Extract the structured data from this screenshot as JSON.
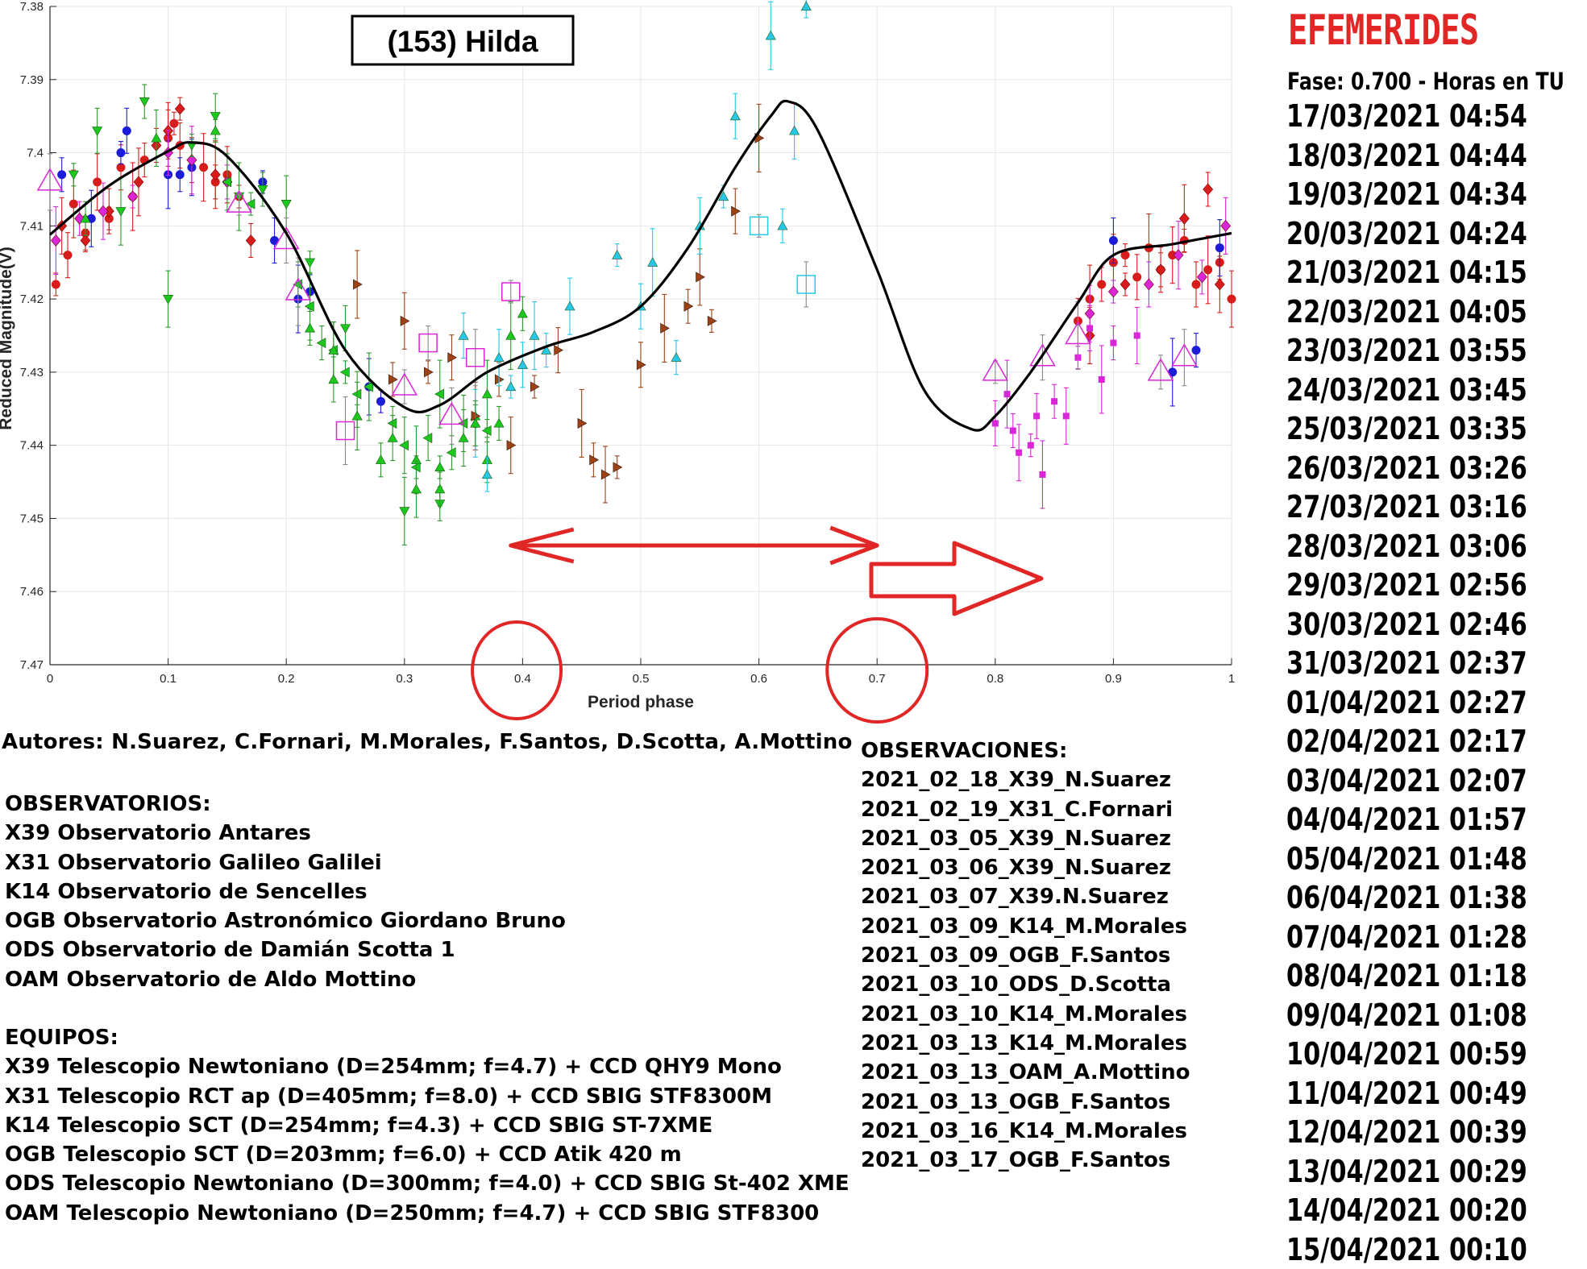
{
  "chart_data": {
    "type": "scatter",
    "title": "(153) Hilda",
    "xlabel": "Period phase",
    "ylabel": "Reduced Magnitude(V)",
    "xlim": [
      0,
      1
    ],
    "ylim": [
      7.47,
      7.38
    ],
    "y_reversed": true,
    "grid": true,
    "x_ticks": [
      "0",
      "0.1",
      "0.2",
      "0.3",
      "0.4",
      "0.5",
      "0.6",
      "0.7",
      "0.8",
      "0.9",
      "1"
    ],
    "y_ticks": [
      "7.38",
      "7.39",
      "7.4",
      "7.41",
      "7.42",
      "7.43",
      "7.44",
      "7.45",
      "7.46",
      "7.47"
    ],
    "fit_curve": {
      "color": "#000000",
      "x": [
        0.0,
        0.05,
        0.1,
        0.12,
        0.15,
        0.2,
        0.25,
        0.3,
        0.33,
        0.37,
        0.42,
        0.46,
        0.5,
        0.54,
        0.58,
        0.61,
        0.625,
        0.65,
        0.7,
        0.74,
        0.78,
        0.8,
        0.83,
        0.87,
        0.9,
        0.95,
        1.0
      ],
      "y": [
        7.4112,
        7.4045,
        7.3998,
        7.3986,
        7.4005,
        7.411,
        7.427,
        7.4348,
        7.4345,
        7.43,
        7.4265,
        7.4245,
        7.421,
        7.413,
        7.402,
        7.395,
        7.393,
        7.397,
        7.416,
        7.4325,
        7.4378,
        7.436,
        7.43,
        7.4205,
        7.414,
        7.4125,
        7.411
      ]
    },
    "series": [
      {
        "name": "2021_02_18_X39_N.Suarez",
        "marker": "circle",
        "color": "#d81c1c",
        "x": [
          0.005,
          0.015,
          0.02,
          0.03,
          0.04,
          0.05,
          0.06,
          0.07,
          0.08,
          0.1,
          0.105,
          0.11,
          0.13,
          0.14,
          0.15,
          0.16,
          0.87,
          0.88,
          0.89,
          0.9,
          0.91,
          0.92,
          0.93,
          0.94,
          0.95,
          0.96,
          0.97,
          0.98,
          0.99,
          1.0
        ],
        "y": [
          7.418,
          7.414,
          7.407,
          7.411,
          7.404,
          7.409,
          7.402,
          7.406,
          7.401,
          7.398,
          7.396,
          7.399,
          7.402,
          7.404,
          7.403,
          7.406,
          7.423,
          7.42,
          7.418,
          7.415,
          7.414,
          7.417,
          7.413,
          7.416,
          7.414,
          7.412,
          7.418,
          7.416,
          7.415,
          7.42
        ]
      },
      {
        "name": "2021_02_19_X31_C.Fornari",
        "marker": "diamond",
        "color": "#d81c1c",
        "x": [
          0.01,
          0.03,
          0.05,
          0.075,
          0.09,
          0.1,
          0.11,
          0.12,
          0.14,
          0.17,
          0.88,
          0.91,
          0.94,
          0.96,
          0.98,
          0.99
        ],
        "y": [
          7.41,
          7.412,
          7.408,
          7.404,
          7.399,
          7.397,
          7.394,
          7.401,
          7.403,
          7.412,
          7.425,
          7.418,
          7.416,
          7.409,
          7.405,
          7.418
        ]
      },
      {
        "name": "2021_03_05_X39_N.Suarez",
        "marker": "circle",
        "color": "#1c1cd8",
        "x": [
          0.01,
          0.035,
          0.06,
          0.065,
          0.1,
          0.11,
          0.12,
          0.18,
          0.19,
          0.21,
          0.22,
          0.27,
          0.28,
          0.9,
          0.95,
          0.97,
          0.99
        ],
        "y": [
          7.403,
          7.409,
          7.4,
          7.397,
          7.403,
          7.403,
          7.402,
          7.404,
          7.412,
          7.42,
          7.419,
          7.432,
          7.434,
          7.412,
          7.43,
          7.427,
          7.413
        ]
      },
      {
        "name": "2021_03_06_X39_N.Suarez",
        "marker": "diamond",
        "color": "#d826d8",
        "x": [
          0.005,
          0.025,
          0.045,
          0.07,
          0.1,
          0.12,
          0.15,
          0.88,
          0.9,
          0.93,
          0.955,
          0.975,
          0.995
        ],
        "y": [
          7.412,
          7.409,
          7.408,
          7.406,
          7.4,
          7.401,
          7.404,
          7.422,
          7.419,
          7.418,
          7.414,
          7.417,
          7.41
        ]
      },
      {
        "name": "2021_03_07_X39.N.Suarez",
        "marker": "square",
        "color": "#d826d8",
        "x": [
          0.8,
          0.81,
          0.815,
          0.82,
          0.83,
          0.835,
          0.84,
          0.85,
          0.86,
          0.87,
          0.88,
          0.89,
          0.9,
          0.92
        ],
        "y": [
          7.437,
          7.433,
          7.438,
          7.441,
          7.44,
          7.436,
          7.444,
          7.434,
          7.436,
          7.428,
          7.424,
          7.431,
          7.426,
          7.425
        ]
      },
      {
        "name": "2021_03_09_K14_M.Morales",
        "marker": "triangle-down",
        "color": "#1cc81c",
        "x": [
          0.02,
          0.04,
          0.06,
          0.08,
          0.1,
          0.12,
          0.14,
          0.16,
          0.18,
          0.2,
          0.22,
          0.25,
          0.3,
          0.33
        ],
        "y": [
          7.403,
          7.397,
          7.408,
          7.393,
          7.42,
          7.399,
          7.395,
          7.406,
          7.405,
          7.407,
          7.415,
          7.424,
          7.449,
          7.448
        ]
      },
      {
        "name": "2021_03_09_OGB_F.Santos",
        "marker": "triangle-left",
        "color": "#1cc81c",
        "x": [
          0.15,
          0.17,
          0.21,
          0.22,
          0.23,
          0.24,
          0.25,
          0.26,
          0.27,
          0.29,
          0.3,
          0.31,
          0.32,
          0.33,
          0.34,
          0.35,
          0.37
        ],
        "y": [
          7.404,
          7.407,
          7.418,
          7.421,
          7.426,
          7.427,
          7.43,
          7.433,
          7.432,
          7.437,
          7.44,
          7.443,
          7.439,
          7.433,
          7.441,
          7.437,
          7.438
        ]
      },
      {
        "name": "2021_03_10_ODS_D.Scotta",
        "marker": "triangle-up",
        "color": "#1cc81c",
        "x": [
          0.22,
          0.24,
          0.26,
          0.29,
          0.31,
          0.33,
          0.35,
          0.36,
          0.37,
          0.39,
          0.4
        ],
        "y": [
          7.424,
          7.427,
          7.436,
          7.439,
          7.442,
          7.446,
          7.439,
          7.436,
          7.442,
          7.425,
          7.422
        ]
      },
      {
        "name": "2021_03_10_K14_M.Morales",
        "marker": "triangle-right",
        "color": "#9c4216",
        "x": [
          0.26,
          0.29,
          0.3,
          0.32,
          0.34,
          0.36,
          0.38,
          0.39,
          0.41,
          0.43,
          0.45,
          0.46,
          0.47,
          0.48,
          0.5,
          0.52,
          0.54,
          0.55,
          0.56,
          0.58,
          0.6
        ],
        "y": [
          7.418,
          7.431,
          7.423,
          7.43,
          7.428,
          7.436,
          7.431,
          7.44,
          7.432,
          7.427,
          7.437,
          7.442,
          7.444,
          7.443,
          7.429,
          7.424,
          7.421,
          7.417,
          7.423,
          7.408,
          7.398
        ]
      },
      {
        "name": "2021_03_13_K14_M.Morales",
        "marker": "triangle-up",
        "color": "#26c8e6",
        "x": [
          0.35,
          0.36,
          0.37,
          0.38,
          0.39,
          0.4,
          0.41,
          0.42,
          0.44,
          0.48,
          0.5,
          0.51,
          0.53,
          0.55,
          0.57,
          0.58,
          0.61,
          0.62,
          0.63,
          0.64
        ],
        "y": [
          7.425,
          7.437,
          7.444,
          7.428,
          7.432,
          7.429,
          7.425,
          7.427,
          7.421,
          7.414,
          7.421,
          7.415,
          7.428,
          7.41,
          7.406,
          7.395,
          7.384,
          7.41,
          7.397,
          7.38
        ]
      },
      {
        "name": "2021_03_13_OAM_A.Mottino",
        "marker": "square-open",
        "color": "#26c8e6",
        "x": [
          0.6,
          0.64
        ],
        "y": [
          7.41,
          7.418
        ]
      },
      {
        "name": "2021_03_13_OGB_F.Santos",
        "marker": "triangle-open",
        "color": "#d826d8",
        "x": [
          0.0,
          0.16,
          0.2,
          0.21,
          0.3,
          0.34,
          0.8,
          0.84,
          0.87,
          0.94,
          0.96
        ],
        "y": [
          7.404,
          7.407,
          7.412,
          7.419,
          7.432,
          7.436,
          7.43,
          7.428,
          7.425,
          7.43,
          7.428
        ]
      },
      {
        "name": "2021_03_16_K14_M.Morales",
        "marker": "triangle-up",
        "color": "#1cc81c",
        "x": [
          0.03,
          0.09,
          0.14,
          0.24,
          0.26,
          0.28,
          0.31,
          0.33,
          0.36,
          0.37,
          0.38
        ],
        "y": [
          7.409,
          7.398,
          7.397,
          7.431,
          7.436,
          7.442,
          7.446,
          7.443,
          7.437,
          7.433,
          7.437
        ]
      },
      {
        "name": "2021_03_17_OGB_F.Santos",
        "marker": "square-open",
        "color": "#d826d8",
        "x": [
          0.25,
          0.32,
          0.36,
          0.39
        ],
        "y": [
          7.438,
          7.426,
          7.428,
          7.419
        ]
      }
    ],
    "annotations": {
      "circled_ticks": [
        "0.4",
        "0.7"
      ],
      "double_arrow": {
        "from": 0.39,
        "to": 0.7,
        "color": "#e12626"
      },
      "block_arrow": {
        "color": "#e12626"
      }
    }
  },
  "text": {
    "authors": "Autores: N.Suarez, C.Fornari, M.Morales, F.Santos, D.Scotta, A.Mottino",
    "observatorios": [
      "OBSERVATORIOS:",
      "X39 Observatorio Antares",
      "X31 Observatorio Galileo Galilei",
      "K14 Observatorio de Sencelles",
      "OGB Observatorio Astronómico Giordano Bruno",
      "ODS Observatorio de Damián Scotta 1",
      "OAM Observatorio de Aldo Mottino"
    ],
    "equipos": [
      "EQUIPOS:",
      "X39 Telescopio Newtoniano (D=254mm; f=4.7) + CCD QHY9 Mono",
      "X31 Telescopio RCT ap (D=405mm; f=8.0) + CCD SBIG STF8300M",
      "K14 Telescopio SCT (D=254mm; f=4.3) + CCD SBIG ST-7XME",
      "OGB Telescopio SCT (D=203mm; f=6.0) + CCD Atik 420 m",
      "ODS Telescopio Newtoniano (D=300mm; f=4.0) + CCD SBIG St-402 XME",
      "OAM Telescopio Newtoniano (D=250mm; f=4.7) + CCD SBIG STF8300"
    ],
    "observaciones": [
      "OBSERVACIONES:",
      "2021_02_18_X39_N.Suarez",
      "2021_02_19_X31_C.Fornari",
      "2021_03_05_X39_N.Suarez",
      "2021_03_06_X39_N.Suarez",
      "2021_03_07_X39.N.Suarez",
      "2021_03_09_K14_M.Morales",
      "2021_03_09_OGB_F.Santos",
      "2021_03_10_ODS_D.Scotta",
      "2021_03_10_K14_M.Morales",
      "2021_03_13_K14_M.Morales",
      "2021_03_13_OAM_A.Mottino",
      "2021_03_13_OGB_F.Santos",
      "2021_03_16_K14_M.Morales",
      "2021_03_17_OGB_F.Santos"
    ],
    "efemerides_title": "EFEMERIDES",
    "efemerides_subtitle": "Fase: 0.700 - Horas en TU",
    "efemerides": [
      "17/03/2021  04:54",
      "18/03/2021  04:44",
      "19/03/2021  04:34",
      "20/03/2021  04:24",
      "21/03/2021  04:15",
      "22/03/2021  04:05",
      "23/03/2021  03:55",
      "24/03/2021  03:45",
      "25/03/2021  03:35",
      "26/03/2021  03:26",
      "27/03/2021  03:16",
      "28/03/2021  03:06",
      "29/03/2021  02:56",
      "30/03/2021  02:46",
      "31/03/2021  02:37",
      "01/04/2021  02:27",
      "02/04/2021  02:17",
      "03/04/2021  02:07",
      "04/04/2021  01:57",
      "05/04/2021  01:48",
      "06/04/2021  01:38",
      "07/04/2021  01:28",
      "08/04/2021  01:18",
      "09/04/2021  01:08",
      "10/04/2021  00:59",
      "11/04/2021  00:49",
      "12/04/2021  00:39",
      "13/04/2021  00:29",
      "14/04/2021  00:20",
      "15/04/2021  00:10"
    ]
  }
}
